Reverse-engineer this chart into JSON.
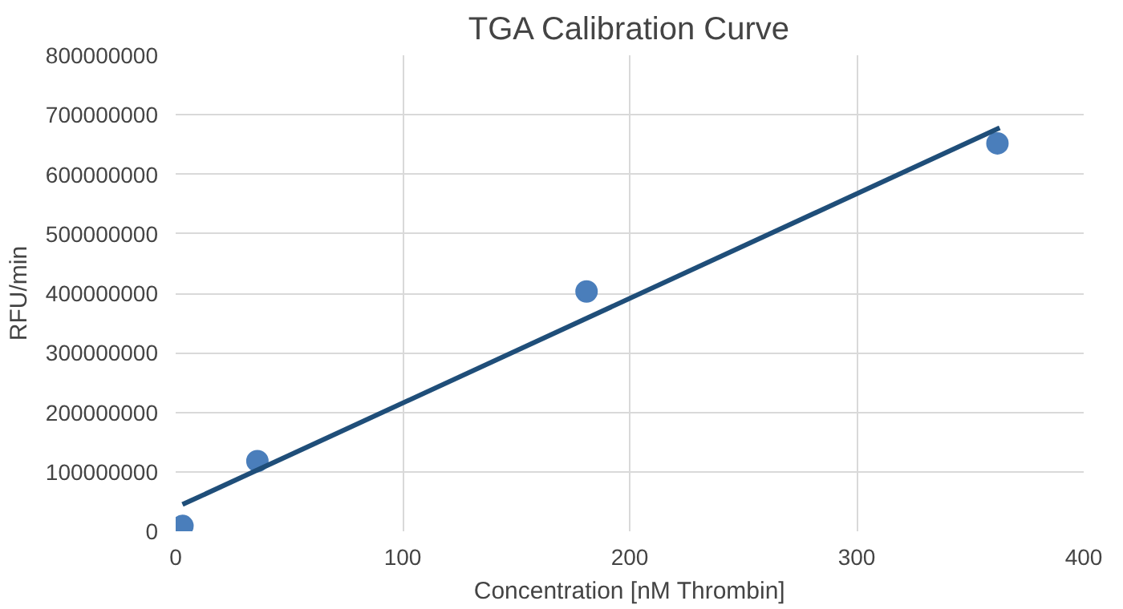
{
  "chart_data": {
    "type": "scatter",
    "title": "TGA Calibration Curve",
    "xlabel": "Concentration [nM Thrombin]",
    "ylabel": "RFU/min",
    "xlim": [
      0,
      400
    ],
    "xticks": [
      0,
      100,
      200,
      300,
      400
    ],
    "ylim": [
      0,
      800000000
    ],
    "yticks": [
      0,
      100000000,
      200000000,
      300000000,
      400000000,
      500000000,
      600000000,
      700000000,
      800000000
    ],
    "grid": true,
    "series": [
      {
        "color": "#4a7ebb",
        "marker": "circle",
        "x": [
          3,
          36,
          181,
          362
        ],
        "values": [
          9000000,
          118000000,
          403000000,
          652000000
        ]
      },
      {
        "type": "line",
        "color": "#1f4e79",
        "x": [
          3,
          363
        ],
        "values": [
          45000000,
          678000000
        ],
        "line_style": "solid"
      }
    ]
  }
}
